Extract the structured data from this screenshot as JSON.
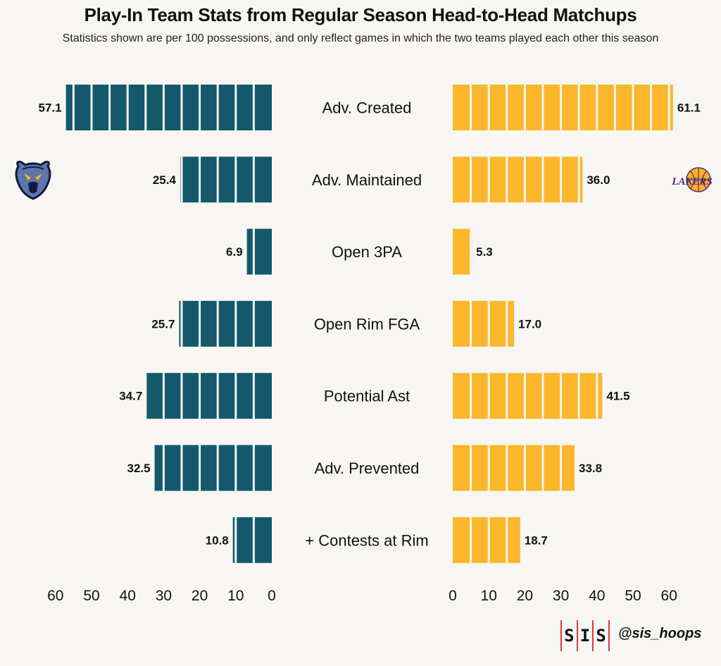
{
  "title": "Play-In Team Stats from Regular Season Head-to-Head Matchups",
  "subtitle": "Statistics shown are per 100 possessions, and only reflect games in which the two teams played each other this season",
  "logos": {
    "left_team_logo": "grizzlies-logo",
    "right_team_logo": "lakers-logo",
    "right_logo_text": "LAKERS"
  },
  "footer": {
    "sis_letters": [
      "S",
      "I",
      "S"
    ],
    "handle": "@sis_hoops"
  },
  "colors": {
    "left": "#14586b",
    "right": "#fbb62b",
    "background": "#f8f6f2",
    "accent": "#d63a3a"
  },
  "chart_data": {
    "type": "bar",
    "orientation": "horizontal-diverging",
    "categories": [
      "Adv. Created",
      "Adv. Maintained",
      "Open 3PA",
      "Open Rim FGA",
      "Potential Ast",
      "Adv. Prevented",
      "+ Contests at Rim"
    ],
    "series": [
      {
        "name": "Memphis Grizzlies",
        "side": "left",
        "values": [
          57.1,
          25.4,
          6.9,
          25.7,
          34.7,
          32.5,
          10.8
        ],
        "labels": [
          "57.1",
          "25.4",
          "6.9",
          "25.7",
          "34.7",
          "32.5",
          "10.8"
        ]
      },
      {
        "name": "Los Angeles Lakers",
        "side": "right",
        "values": [
          61.1,
          36.0,
          5.3,
          17.0,
          41.5,
          33.8,
          18.7
        ],
        "labels": [
          "61.1",
          "36.0",
          "5.3",
          "17.0",
          "41.5",
          "33.8",
          "18.7"
        ]
      }
    ],
    "xlim_left": [
      60,
      0
    ],
    "xlim_right": [
      0,
      60
    ],
    "ticks": [
      0,
      10,
      20,
      30,
      40,
      50,
      60
    ],
    "segment_size": 5,
    "xlabel": "",
    "ylabel": "",
    "grid": false
  }
}
